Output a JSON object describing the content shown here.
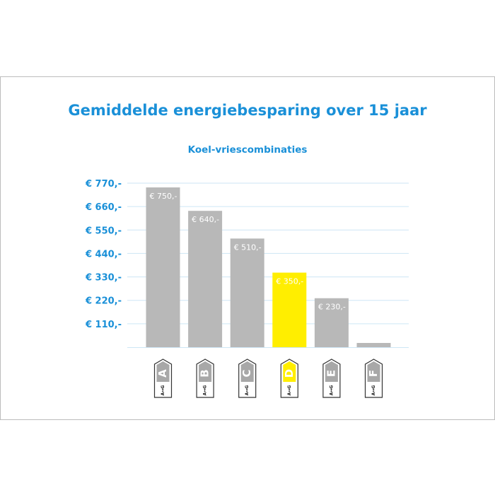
{
  "chart_data": {
    "type": "bar",
    "title": "Gemiddelde energiebesparing over 15 jaar",
    "subtitle": "Koel-vriescombinaties",
    "categories": [
      "A",
      "B",
      "C",
      "D",
      "E",
      "F"
    ],
    "values": [
      750,
      640,
      510,
      350,
      230,
      20
    ],
    "data_labels": [
      "€ 750,-",
      "€ 640,-",
      "€ 510,-",
      "€ 350,-",
      "€ 230,-",
      ""
    ],
    "highlight_index": 3,
    "yticks": [
      110,
      220,
      330,
      440,
      550,
      660,
      770
    ],
    "ytick_labels": [
      "€ 110,-",
      "€ 220,-",
      "€ 330,-",
      "€ 440,-",
      "€ 550,-",
      "€ 660,-",
      "€ 770,-"
    ],
    "ylim": [
      0,
      770
    ],
    "grid": true,
    "badge_scale": [
      "A",
      "G"
    ],
    "colors": {
      "bar": "#b8b8b8",
      "highlight": "#ffee00",
      "text_accent": "#1a90d8",
      "grid": "#cde6f5",
      "badge_fill": "#a8a8a8"
    }
  }
}
